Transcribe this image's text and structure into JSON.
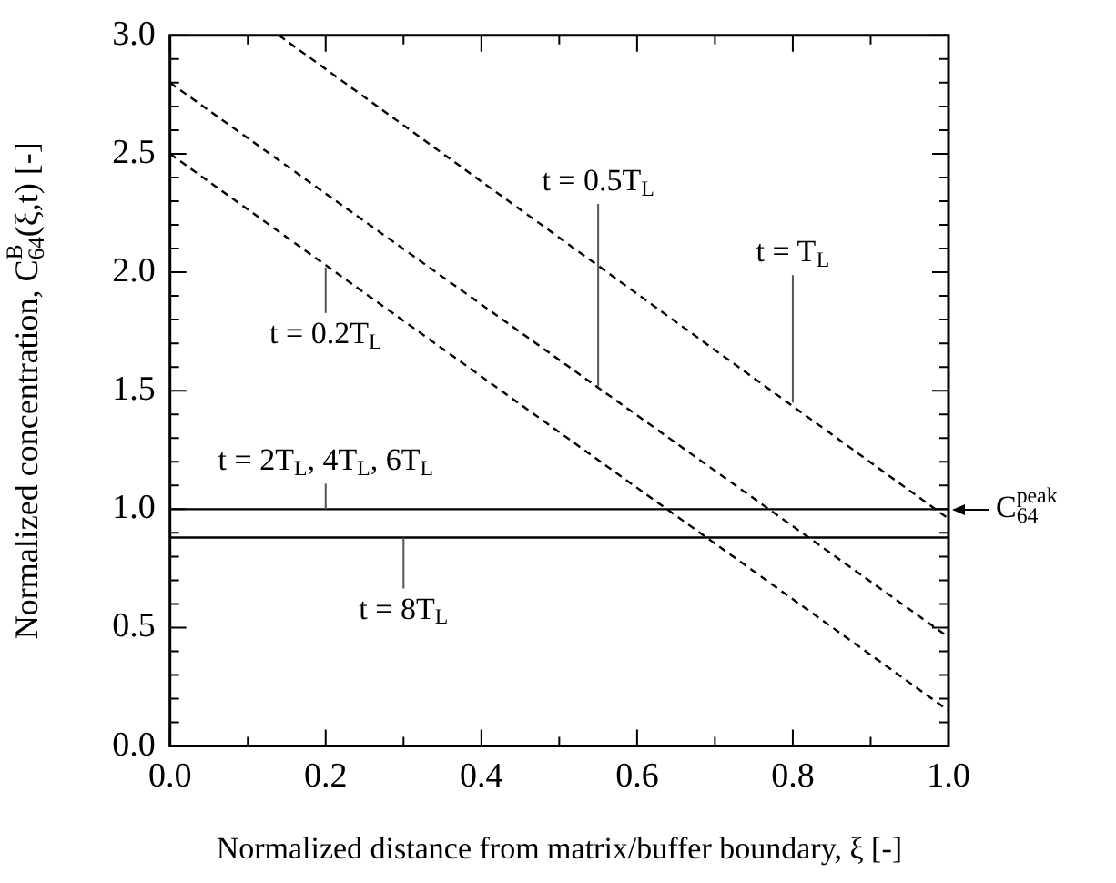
{
  "chart_data": {
    "type": "line",
    "xlabel": "Normalized distance from matrix/buffer boundary, ξ [-]",
    "ylabel": "Normalized concentration, C$^{B}$$_{64}$(ξ,t) [-]",
    "xlim": [
      0,
      1
    ],
    "ylim": [
      0,
      3
    ],
    "xticks": [
      {
        "value": 0,
        "label": "0.0"
      },
      {
        "value": 0.1,
        "label": null
      },
      {
        "value": 0.2,
        "label": "0.2"
      },
      {
        "value": 0.3,
        "label": null
      },
      {
        "value": 0.4,
        "label": "0.4"
      },
      {
        "value": 0.5,
        "label": null
      },
      {
        "value": 0.6,
        "label": "0.6"
      },
      {
        "value": 0.7,
        "label": null
      },
      {
        "value": 0.8,
        "label": "0.8"
      },
      {
        "value": 0.9,
        "label": null
      },
      {
        "value": 1.0,
        "label": "1.0"
      }
    ],
    "yticks": [
      {
        "value": 0,
        "label": "0.0"
      },
      {
        "value": 0.1,
        "label": null
      },
      {
        "value": 0.2,
        "label": null
      },
      {
        "value": 0.3,
        "label": null
      },
      {
        "value": 0.4,
        "label": null
      },
      {
        "value": 0.5,
        "label": "0.5"
      },
      {
        "value": 0.6,
        "label": null
      },
      {
        "value": 0.7,
        "label": null
      },
      {
        "value": 0.8,
        "label": null
      },
      {
        "value": 0.9,
        "label": null
      },
      {
        "value": 1.0,
        "label": "1.0"
      },
      {
        "value": 1.1,
        "label": null
      },
      {
        "value": 1.2,
        "label": null
      },
      {
        "value": 1.3,
        "label": null
      },
      {
        "value": 1.4,
        "label": null
      },
      {
        "value": 1.5,
        "label": "1.5"
      },
      {
        "value": 1.6,
        "label": null
      },
      {
        "value": 1.7,
        "label": null
      },
      {
        "value": 1.8,
        "label": null
      },
      {
        "value": 1.9,
        "label": null
      },
      {
        "value": 2.0,
        "label": "2.0"
      },
      {
        "value": 2.1,
        "label": null
      },
      {
        "value": 2.2,
        "label": null
      },
      {
        "value": 2.3,
        "label": null
      },
      {
        "value": 2.4,
        "label": null
      },
      {
        "value": 2.5,
        "label": "2.5"
      },
      {
        "value": 2.6,
        "label": null
      },
      {
        "value": 2.7,
        "label": null
      },
      {
        "value": 2.8,
        "label": null
      },
      {
        "value": 2.9,
        "label": null
      },
      {
        "value": 3.0,
        "label": "3.0"
      }
    ],
    "grid": false,
    "legend": false,
    "marker": "none",
    "series": [
      {
        "color": "#000000",
        "line_style": "dashed",
        "x": [
          0,
          1
        ],
        "values": [
          2.5,
          0.15
        ]
      },
      {
        "color": "#000000",
        "line_style": "dashed",
        "x": [
          0,
          1
        ],
        "values": [
          2.8,
          0.46
        ]
      },
      {
        "color": "#000000",
        "line_style": "dashed",
        "x": [
          0.14,
          1
        ],
        "values": [
          3.0,
          0.96
        ]
      },
      {
        "color": "#000000",
        "line_style": "solid",
        "x": [
          0,
          1
        ],
        "values": [
          1.0,
          1.0
        ]
      },
      {
        "color": "#000000",
        "line_style": "solid",
        "x": [
          0,
          1
        ],
        "values": [
          0.88,
          0.88
        ]
      }
    ],
    "annotations": [
      {
        "text": "t = 0.2T$_{L}$",
        "x": 0.2,
        "y": 2.02
      },
      {
        "text": "t = 0.5T$_{L}$",
        "x": 0.55,
        "y": 1.52
      },
      {
        "text": "t = T$_{L}$",
        "x": 0.8,
        "y": 1.45
      },
      {
        "text": "t = 2T$_{L}$, 4T$_{L}$, 6T$_{L}$",
        "x": 0.2,
        "y": 1.0
      },
      {
        "text": "t = 8T$_{L}$",
        "x": 0.3,
        "y": 0.88
      },
      {
        "text": "C$^{peak}$$_{64}$",
        "x": 1.0,
        "y": 1.0
      }
    ]
  }
}
